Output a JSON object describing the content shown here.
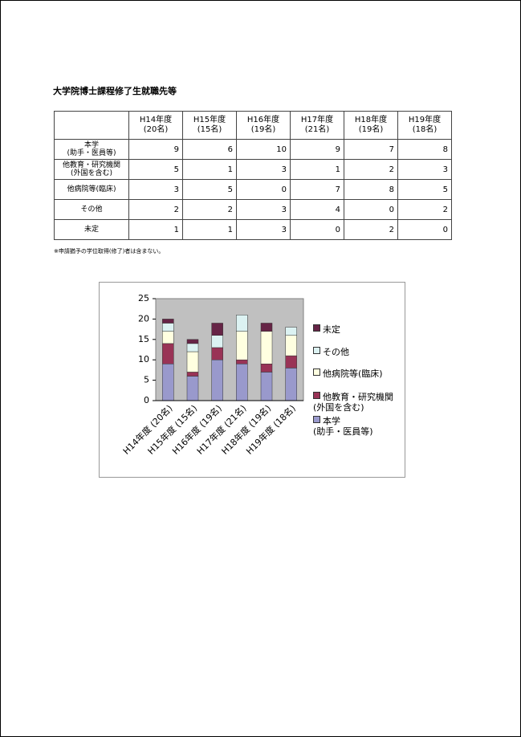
{
  "title": "大学院博士課程修了生就職先等",
  "table": {
    "header": [
      "H14年度\n(20名)",
      "H15年度\n(15名)",
      "H16年度\n(19名)",
      "H17年度\n(21名)",
      "H18年度\n(19名)",
      "H19年度\n(18名)"
    ]
  },
  "note": "※申請猶予の学位取得(修了)者は含まない。",
  "chart_data": {
    "type": "stacked_bar",
    "categories": [
      "H14年度 (20名)",
      "H15年度 (15名)",
      "H16年度 (19名)",
      "H17年度 (21名)",
      "H18年度 (19名)",
      "H19年度 (18名)"
    ],
    "series": [
      {
        "name": "本学\n(助手・医員等)",
        "color": "#9999cc",
        "values": [
          9,
          6,
          10,
          9,
          7,
          8
        ]
      },
      {
        "name": "他教育・研究機関\n(外国を含む)",
        "color": "#993356",
        "values": [
          5,
          1,
          3,
          1,
          2,
          3
        ]
      },
      {
        "name": "他病院等(臨床)",
        "color": "#ffffe0",
        "values": [
          3,
          5,
          0,
          7,
          8,
          5
        ]
      },
      {
        "name": "その他",
        "color": "#dcf2f2",
        "values": [
          2,
          2,
          3,
          4,
          0,
          2
        ]
      },
      {
        "name": "未定",
        "color": "#662446",
        "values": [
          1,
          1,
          3,
          0,
          2,
          0
        ]
      }
    ],
    "ylim": [
      0,
      25
    ],
    "yticks": [
      0,
      5,
      10,
      15,
      20,
      25
    ],
    "grid": false,
    "legend": "right"
  }
}
